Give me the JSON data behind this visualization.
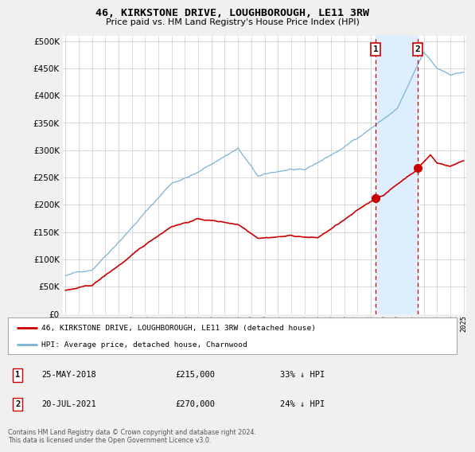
{
  "title": "46, KIRKSTONE DRIVE, LOUGHBOROUGH, LE11 3RW",
  "subtitle": "Price paid vs. HM Land Registry's House Price Index (HPI)",
  "ytick_values": [
    0,
    50000,
    100000,
    150000,
    200000,
    250000,
    300000,
    350000,
    400000,
    450000,
    500000
  ],
  "ylim": [
    0,
    510000
  ],
  "x_start_year": 1995,
  "x_end_year": 2025,
  "hpi_color": "#7ab3d4",
  "price_color": "#cc0000",
  "vline_color": "#cc0000",
  "shade_color": "#ddeeff",
  "background_color": "#f0f0f0",
  "plot_bg_color": "#ffffff",
  "transaction1_date": "25-MAY-2018",
  "transaction1_price": 215000,
  "transaction1_pct": "33%",
  "transaction1_year": 2018.38,
  "transaction2_date": "20-JUL-2021",
  "transaction2_price": 270000,
  "transaction2_pct": "24%",
  "transaction2_year": 2021.55,
  "legend_label_red": "46, KIRKSTONE DRIVE, LOUGHBOROUGH, LE11 3RW (detached house)",
  "legend_label_blue": "HPI: Average price, detached house, Charnwood",
  "footer": "Contains HM Land Registry data © Crown copyright and database right 2024.\nThis data is licensed under the Open Government Licence v3.0."
}
